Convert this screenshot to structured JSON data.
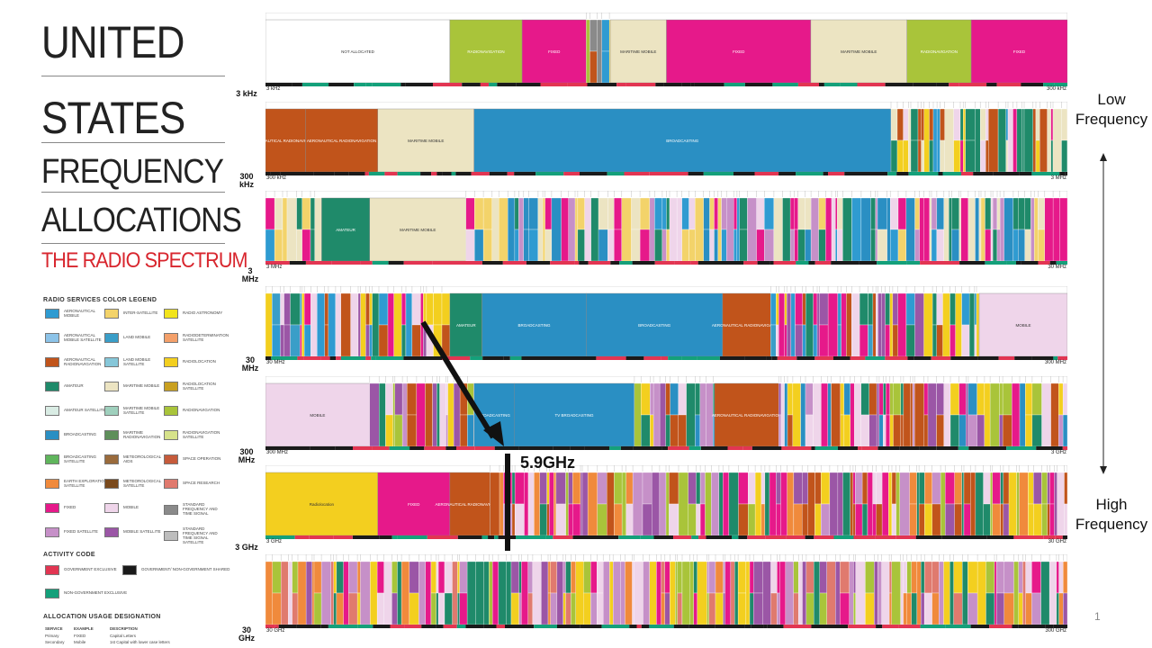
{
  "title": {
    "line1": "UNITED",
    "line2": "STATES",
    "line3": "FREQUENCY",
    "line4": "ALLOCATIONS",
    "line5": "THE RADIO SPECTRUM"
  },
  "legend": {
    "heading": "RADIO SERVICES COLOR LEGEND",
    "items": [
      {
        "label": "AERONAUTICAL MOBILE",
        "color": "#2f9bd1"
      },
      {
        "label": "AERONAUTICAL MOBILE SATELLITE",
        "color": "#8cc3e8"
      },
      {
        "label": "AERONAUTICAL RADIONAVIGATION",
        "color": "#c1541b"
      },
      {
        "label": "AMATEUR",
        "color": "#1f8a6a"
      },
      {
        "label": "AMATEUR SATELLITE",
        "color": "#d9ece4"
      },
      {
        "label": "BROADCASTING",
        "color": "#2a8fc3"
      },
      {
        "label": "BROADCASTING SATELLITE",
        "color": "#5fb55c"
      },
      {
        "label": "EARTH EXPLORATION SATELLITE",
        "color": "#f08a3c"
      },
      {
        "label": "FIXED",
        "color": "#e6198a"
      },
      {
        "label": "FIXED SATELLITE",
        "color": "#c690c8"
      },
      {
        "label": "INTER-SATELLITE",
        "color": "#f3d36a"
      },
      {
        "label": "LAND MOBILE",
        "color": "#3a9ec8"
      },
      {
        "label": "LAND MOBILE SATELLITE",
        "color": "#86c7d9"
      },
      {
        "label": "MARITIME MOBILE",
        "color": "#ece4c2"
      },
      {
        "label": "MARITIME MOBILE SATELLITE",
        "color": "#9fd0bd"
      },
      {
        "label": "MARITIME RADIONAVIGATION",
        "color": "#5e8f5a"
      },
      {
        "label": "METEOROLOGICAL AIDS",
        "color": "#9a6b3c"
      },
      {
        "label": "METEOROLOGICAL SATELLITE",
        "color": "#7a4a1c"
      },
      {
        "label": "MOBILE",
        "color": "#efd5ea"
      },
      {
        "label": "MOBILE SATELLITE",
        "color": "#9b56a6"
      },
      {
        "label": "RADIO ASTRONOMY",
        "color": "#f2e41c"
      },
      {
        "label": "RADIODETERMINATION SATELLITE",
        "color": "#f4a06a"
      },
      {
        "label": "RADIOLOCATION",
        "color": "#f3cf1f"
      },
      {
        "label": "RADIOLOCATION SATELLITE",
        "color": "#c9a020"
      },
      {
        "label": "RADIONAVIGATION",
        "color": "#a9c43a"
      },
      {
        "label": "RADIONAVIGATION SATELLITE",
        "color": "#d6e28a"
      },
      {
        "label": "SPACE OPERATION",
        "color": "#c65b3b"
      },
      {
        "label": "SPACE RESEARCH",
        "color": "#e07a6e"
      },
      {
        "label": "STANDARD FREQUENCY AND TIME SIGNAL",
        "color": "#8a8a8a"
      },
      {
        "label": "STANDARD FREQUENCY AND TIME SIGNAL SATELLITE",
        "color": "#bdbdbd"
      }
    ]
  },
  "activity": {
    "heading": "ACTIVITY CODE",
    "items": [
      {
        "label": "GOVERNMENT EXCLUSIVE",
        "color": "#e23552"
      },
      {
        "label": "GOVERNMENT/ NON-GOVERNMENT SHARED",
        "color": "#1a1a1a"
      },
      {
        "label": "NON-GOVERNMENT EXCLUSIVE",
        "color": "#14a07a"
      }
    ]
  },
  "usage": {
    "heading": "ALLOCATION USAGE DESIGNATION",
    "cols": [
      "SERVICE",
      "EXAMPLE",
      "DESCRIPTION"
    ],
    "rows": [
      [
        "Primary",
        "FIXED",
        "Capital Letters"
      ],
      [
        "Secondary",
        "Mobile",
        "1st Capital with lower case letters"
      ]
    ]
  },
  "bands": [
    "3 kHz",
    "300 kHz",
    "3 MHz",
    "30 MHz",
    "300 MHz",
    "3 GHz",
    "30 GHz"
  ],
  "rows": [
    {
      "start": "3 kHz",
      "end": "300 kHz",
      "seed": 3,
      "palette": [
        "#ece4c2",
        "#e6198a",
        "#a9c43a",
        "#c1541b",
        "#2f9bd1",
        "#f3cf1f",
        "#8a8a8a"
      ],
      "blocks": [
        {
          "w": 0.23,
          "c": "#ffffff",
          "t": "NOT ALLOCATED"
        },
        {
          "w": 0.09,
          "c": "#a9c43a",
          "t": "RADIONAVIGATION"
        },
        {
          "w": 0.08,
          "c": "#e6198a",
          "t": "FIXED"
        },
        {
          "w": 0.03,
          "c": "#555555",
          "t": ""
        },
        {
          "w": 0.07,
          "c": "#ece4c2",
          "t": "MARITIME MOBILE"
        },
        {
          "w": 0.18,
          "c": "#e6198a",
          "t": "FIXED"
        },
        {
          "w": 0.12,
          "c": "#ece4c2",
          "t": "MARITIME MOBILE"
        },
        {
          "w": 0.08,
          "c": "#a9c43a",
          "t": "RADIONAVIGATION"
        },
        {
          "w": 0.12,
          "c": "#e6198a",
          "t": "FIXED"
        }
      ]
    },
    {
      "start": "300 kHz",
      "end": "3 MHz",
      "seed": 7,
      "palette": [
        "#e6198a",
        "#ece4c2",
        "#2f9bd1",
        "#1f8a6a",
        "#f3cf1f",
        "#efd5ea",
        "#c1541b"
      ],
      "blocks": [
        {
          "w": 0.05,
          "c": "#c1541b",
          "t": "AERONAUTICAL RADIONAVIGATION"
        },
        {
          "w": 0.09,
          "c": "#c1541b",
          "t": "AERONAUTICAL RADIONAVIGATION"
        },
        {
          "w": 0.12,
          "c": "#ece4c2",
          "t": "MARITIME MOBILE"
        },
        {
          "w": 0.52,
          "c": "#2a8fc3",
          "t": "BROADCASTING"
        },
        {
          "w": 0.22,
          "c": "#e6198a",
          "t": ""
        }
      ]
    },
    {
      "start": "3 MHz",
      "end": "30 MHz",
      "seed": 11,
      "palette": [
        "#e6198a",
        "#2f9bd1",
        "#ece4c2",
        "#efd5ea",
        "#1f8a6a",
        "#2a8fc3",
        "#f3d36a",
        "#c690c8"
      ],
      "blocks": [
        {
          "w": 0.07,
          "c": "#2f9bd1",
          "t": ""
        },
        {
          "w": 0.06,
          "c": "#1f8a6a",
          "t": "AMATEUR"
        },
        {
          "w": 0.12,
          "c": "#ece4c2",
          "t": "MARITIME MOBILE"
        },
        {
          "w": 0.75,
          "c": "#e6198a",
          "t": ""
        }
      ]
    },
    {
      "start": "30 MHz",
      "end": "300 MHz",
      "seed": 19,
      "palette": [
        "#e6198a",
        "#2f9bd1",
        "#efd5ea",
        "#3a9ec8",
        "#c1541b",
        "#1f8a6a",
        "#f3cf1f",
        "#9b56a6"
      ],
      "blocks": [
        {
          "w": 0.23,
          "c": "#e6198a",
          "t": ""
        },
        {
          "w": 0.04,
          "c": "#1f8a6a",
          "t": "AMATEUR"
        },
        {
          "w": 0.13,
          "c": "#2a8fc3",
          "t": "BROADCASTING"
        },
        {
          "w": 0.17,
          "c": "#2a8fc3",
          "t": "BROADCASTING"
        },
        {
          "w": 0.06,
          "c": "#c1541b",
          "t": "AERONAUTICAL RADIONAVIGATION"
        },
        {
          "w": 0.26,
          "c": "#3a9ec8",
          "t": ""
        },
        {
          "w": 0.11,
          "c": "#efd5ea",
          "t": "MOBILE"
        }
      ]
    },
    {
      "start": "300 MHz",
      "end": "3 GHz",
      "seed": 23,
      "palette": [
        "#e6198a",
        "#efd5ea",
        "#2a8fc3",
        "#c1541b",
        "#1f8a6a",
        "#f3cf1f",
        "#9b56a6",
        "#a9c43a",
        "#c690c8"
      ],
      "blocks": [
        {
          "w": 0.13,
          "c": "#efd5ea",
          "t": "MOBILE"
        },
        {
          "w": 0.13,
          "c": "#e6198a",
          "t": ""
        },
        {
          "w": 0.05,
          "c": "#2a8fc3",
          "t": "BROADCASTING"
        },
        {
          "w": 0.15,
          "c": "#2a8fc3",
          "t": "TV BROADCASTING"
        },
        {
          "w": 0.1,
          "c": "#3a9ec8",
          "t": ""
        },
        {
          "w": 0.08,
          "c": "#c1541b",
          "t": "AERONAUTICAL RADIONAVIGATION"
        },
        {
          "w": 0.36,
          "c": "#e6198a",
          "t": ""
        }
      ]
    },
    {
      "start": "3 GHz",
      "end": "30 GHz",
      "seed": 29,
      "palette": [
        "#e6198a",
        "#c690c8",
        "#f3cf1f",
        "#efd5ea",
        "#1f8a6a",
        "#9b56a6",
        "#f08a3c",
        "#a9c43a",
        "#c1541b"
      ],
      "blocks": [
        {
          "w": 0.14,
          "c": "#f3cf1f",
          "t": "Radiolocation"
        },
        {
          "w": 0.09,
          "c": "#e6198a",
          "t": "FIXED"
        },
        {
          "w": 0.05,
          "c": "#c1541b",
          "t": "AERONAUTICAL RADIONAVIGATION"
        },
        {
          "w": 0.72,
          "c": "#e6198a",
          "t": ""
        }
      ]
    },
    {
      "start": "30 GHz",
      "end": "300 GHz",
      "seed": 37,
      "palette": [
        "#e6198a",
        "#c690c8",
        "#f3cf1f",
        "#efd5ea",
        "#1f8a6a",
        "#9b56a6",
        "#f08a3c",
        "#e07a6e",
        "#a9c43a"
      ],
      "blocks": [
        {
          "w": 1.0,
          "c": "#e6198a",
          "t": ""
        }
      ]
    }
  ],
  "side": {
    "low": "Low Frequency",
    "high": "High Frequency"
  },
  "annotation": {
    "label": "5.9GHz",
    "color": "#000000"
  },
  "page_number": "1"
}
